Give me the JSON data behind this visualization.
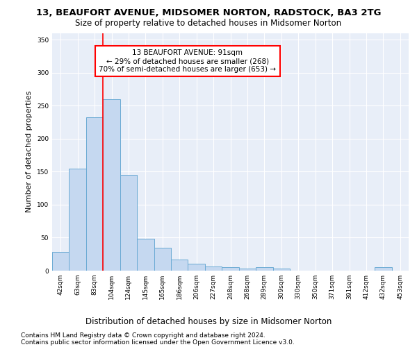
{
  "title": "13, BEAUFORT AVENUE, MIDSOMER NORTON, RADSTOCK, BA3 2TG",
  "subtitle": "Size of property relative to detached houses in Midsomer Norton",
  "xlabel": "Distribution of detached houses by size in Midsomer Norton",
  "ylabel": "Number of detached properties",
  "bar_labels": [
    "42sqm",
    "63sqm",
    "83sqm",
    "104sqm",
    "124sqm",
    "145sqm",
    "165sqm",
    "186sqm",
    "206sqm",
    "227sqm",
    "248sqm",
    "268sqm",
    "289sqm",
    "309sqm",
    "330sqm",
    "350sqm",
    "371sqm",
    "391sqm",
    "412sqm",
    "432sqm",
    "453sqm"
  ],
  "bar_values": [
    28,
    155,
    232,
    260,
    145,
    48,
    35,
    17,
    10,
    6,
    5,
    3,
    5,
    3,
    0,
    0,
    0,
    0,
    0,
    5,
    0
  ],
  "bar_color": "#c5d8f0",
  "bar_edge_color": "#6aaad4",
  "red_line_x": 2.5,
  "annotation_title": "13 BEAUFORT AVENUE: 91sqm",
  "annotation_line1": "← 29% of detached houses are smaller (268)",
  "annotation_line2": "70% of semi-detached houses are larger (653) →",
  "ylim": [
    0,
    360
  ],
  "yticks": [
    0,
    50,
    100,
    150,
    200,
    250,
    300,
    350
  ],
  "footer1": "Contains HM Land Registry data © Crown copyright and database right 2024.",
  "footer2": "Contains public sector information licensed under the Open Government Licence v3.0.",
  "bg_color": "#e8eef8",
  "grid_color": "#ffffff",
  "title_fontsize": 9.5,
  "subtitle_fontsize": 8.5,
  "annotation_fontsize": 7.5,
  "ylabel_fontsize": 8,
  "xlabel_fontsize": 8.5,
  "tick_fontsize": 6.5,
  "footer_fontsize": 6.5
}
